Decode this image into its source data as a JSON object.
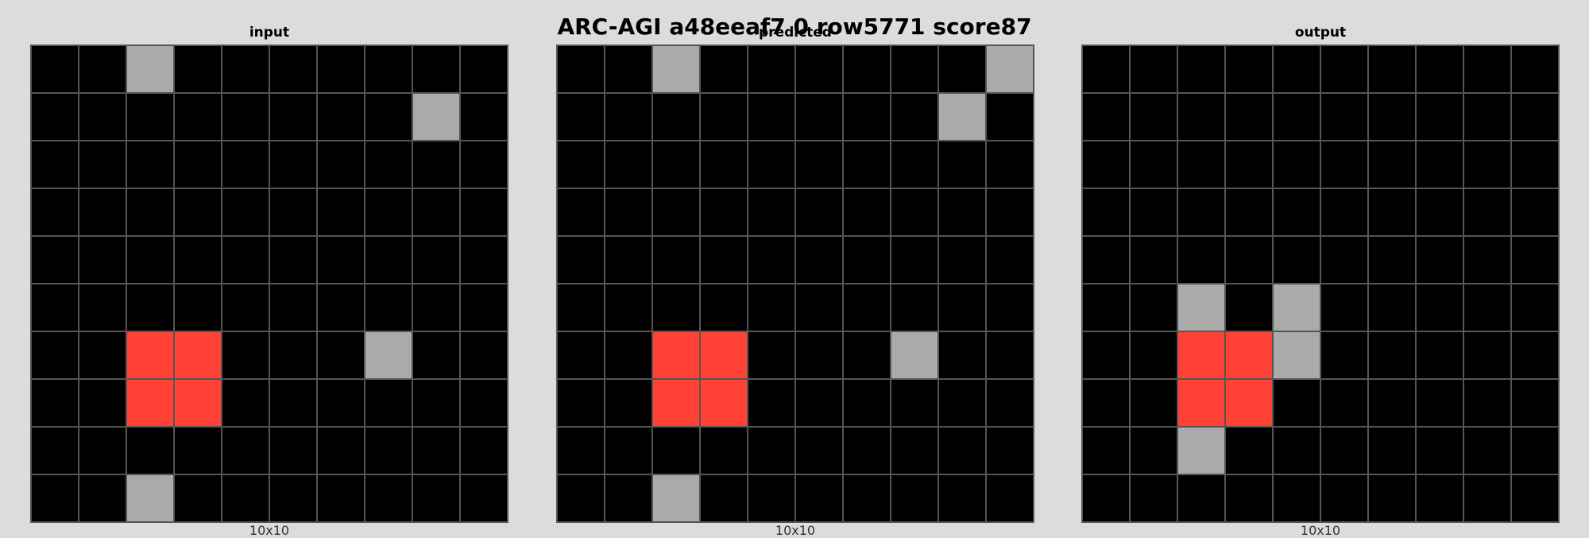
{
  "title": "ARC-AGI a48eeaf7 0 row5771 score87",
  "palette": {
    "0": "#000000",
    "2": "#ff4136",
    "5": "#aaaaaa"
  },
  "panels": [
    {
      "title": "input",
      "caption": "10x10",
      "grid": [
        [
          0,
          0,
          5,
          0,
          0,
          0,
          0,
          0,
          0,
          0
        ],
        [
          0,
          0,
          0,
          0,
          0,
          0,
          0,
          0,
          5,
          0
        ],
        [
          0,
          0,
          0,
          0,
          0,
          0,
          0,
          0,
          0,
          0
        ],
        [
          0,
          0,
          0,
          0,
          0,
          0,
          0,
          0,
          0,
          0
        ],
        [
          0,
          0,
          0,
          0,
          0,
          0,
          0,
          0,
          0,
          0
        ],
        [
          0,
          0,
          0,
          0,
          0,
          0,
          0,
          0,
          0,
          0
        ],
        [
          0,
          0,
          2,
          2,
          0,
          0,
          0,
          5,
          0,
          0
        ],
        [
          0,
          0,
          2,
          2,
          0,
          0,
          0,
          0,
          0,
          0
        ],
        [
          0,
          0,
          0,
          0,
          0,
          0,
          0,
          0,
          0,
          0
        ],
        [
          0,
          0,
          5,
          0,
          0,
          0,
          0,
          0,
          0,
          0
        ]
      ]
    },
    {
      "title": "predicted",
      "caption": "10x10",
      "grid": [
        [
          0,
          0,
          5,
          0,
          0,
          0,
          0,
          0,
          0,
          5
        ],
        [
          0,
          0,
          0,
          0,
          0,
          0,
          0,
          0,
          5,
          0
        ],
        [
          0,
          0,
          0,
          0,
          0,
          0,
          0,
          0,
          0,
          0
        ],
        [
          0,
          0,
          0,
          0,
          0,
          0,
          0,
          0,
          0,
          0
        ],
        [
          0,
          0,
          0,
          0,
          0,
          0,
          0,
          0,
          0,
          0
        ],
        [
          0,
          0,
          0,
          0,
          0,
          0,
          0,
          0,
          0,
          0
        ],
        [
          0,
          0,
          2,
          2,
          0,
          0,
          0,
          5,
          0,
          0
        ],
        [
          0,
          0,
          2,
          2,
          0,
          0,
          0,
          0,
          0,
          0
        ],
        [
          0,
          0,
          0,
          0,
          0,
          0,
          0,
          0,
          0,
          0
        ],
        [
          0,
          0,
          5,
          0,
          0,
          0,
          0,
          0,
          0,
          0
        ]
      ]
    },
    {
      "title": "output",
      "caption": "10x10",
      "grid": [
        [
          0,
          0,
          0,
          0,
          0,
          0,
          0,
          0,
          0,
          0
        ],
        [
          0,
          0,
          0,
          0,
          0,
          0,
          0,
          0,
          0,
          0
        ],
        [
          0,
          0,
          0,
          0,
          0,
          0,
          0,
          0,
          0,
          0
        ],
        [
          0,
          0,
          0,
          0,
          0,
          0,
          0,
          0,
          0,
          0
        ],
        [
          0,
          0,
          0,
          0,
          0,
          0,
          0,
          0,
          0,
          0
        ],
        [
          0,
          0,
          5,
          0,
          5,
          0,
          0,
          0,
          0,
          0
        ],
        [
          0,
          0,
          2,
          2,
          5,
          0,
          0,
          0,
          0,
          0
        ],
        [
          0,
          0,
          2,
          2,
          0,
          0,
          0,
          0,
          0,
          0
        ],
        [
          0,
          0,
          5,
          0,
          0,
          0,
          0,
          0,
          0,
          0
        ],
        [
          0,
          0,
          0,
          0,
          0,
          0,
          0,
          0,
          0,
          0
        ]
      ]
    }
  ]
}
